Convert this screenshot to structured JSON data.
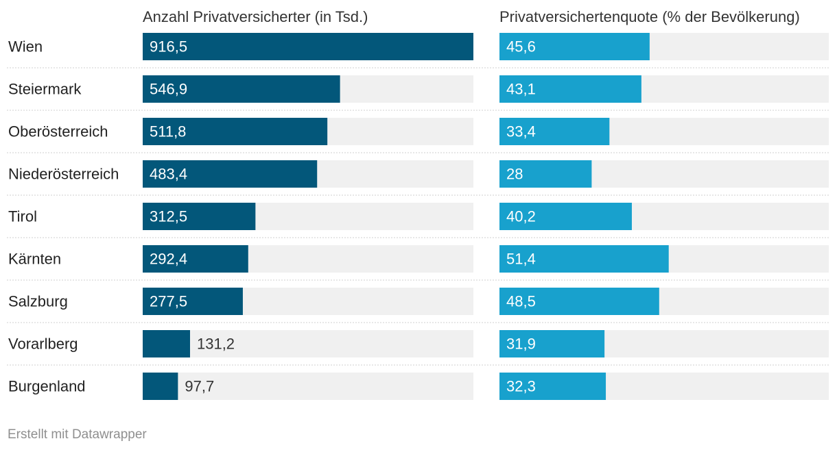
{
  "chart_data": {
    "type": "bar",
    "orientation": "horizontal",
    "categories": [
      "Wien",
      "Steiermark",
      "Oberösterreich",
      "Niederösterreich",
      "Tirol",
      "Kärnten",
      "Salzburg",
      "Vorarlberg",
      "Burgenland"
    ],
    "series": [
      {
        "name": "Anzahl Privatversicherter (in Tsd.)",
        "values": [
          916.5,
          546.9,
          511.8,
          483.4,
          312.5,
          292.4,
          277.5,
          131.2,
          97.7
        ],
        "labels": [
          "916,5",
          "546,9",
          "511,8",
          "483,4",
          "312,5",
          "292,4",
          "277,5",
          "131,2",
          "97,7"
        ],
        "xlim": [
          0,
          916.5
        ],
        "color": "#03577a"
      },
      {
        "name": "Privatversichertenquote (% der Bevölkerung)",
        "values": [
          45.6,
          43.1,
          33.4,
          28,
          40.2,
          51.4,
          48.5,
          31.9,
          32.3
        ],
        "labels": [
          "45,6",
          "43,1",
          "33,4",
          "28",
          "40,2",
          "51,4",
          "48,5",
          "31,9",
          "32,3"
        ],
        "xlim": [
          0,
          100
        ],
        "color": "#18a1cd"
      }
    ],
    "background_bar_color": "#f0f0f0",
    "grid": false,
    "legend": "column titles"
  },
  "footer": {
    "credit": "Erstellt mit Datawrapper"
  }
}
